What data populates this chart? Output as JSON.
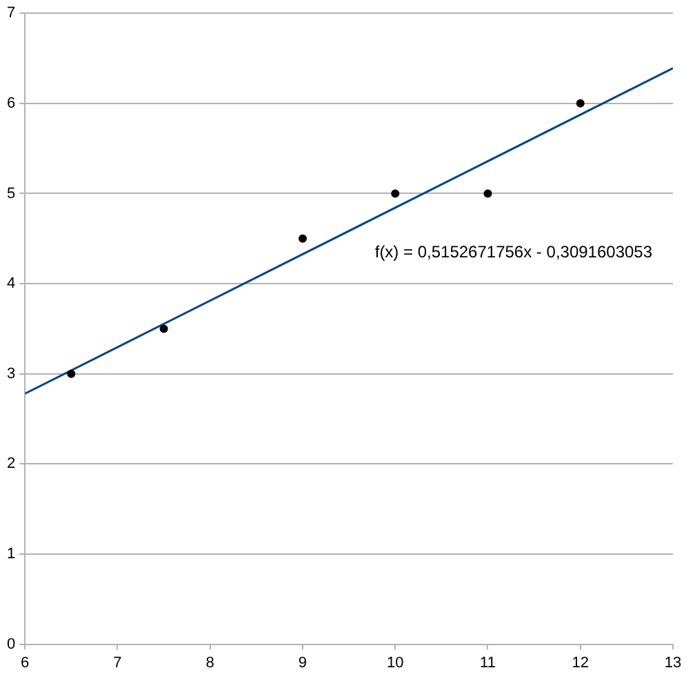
{
  "chart_data": {
    "type": "scatter",
    "series": [
      {
        "color": "#000000",
        "marker": "circle",
        "x": [
          6.5,
          7.5,
          9,
          10,
          11,
          12
        ],
        "values": [
          3,
          3.5,
          4.5,
          5,
          5,
          6
        ]
      },
      {
        "type": "line",
        "color": "#004586",
        "marker": "none",
        "x": [
          6,
          13
        ],
        "values": [
          2.78,
          6.39
        ]
      }
    ],
    "xlim": [
      6,
      13
    ],
    "xticks": [
      6,
      7,
      8,
      9,
      10,
      11,
      12,
      13
    ],
    "ylim": [
      0,
      7
    ],
    "yticks": [
      0,
      1,
      2,
      3,
      4,
      5,
      6,
      7
    ],
    "grid": "y",
    "legend": false,
    "annotations": [
      "f(x) = 0,5152671756x - 0,3091603053"
    ]
  }
}
